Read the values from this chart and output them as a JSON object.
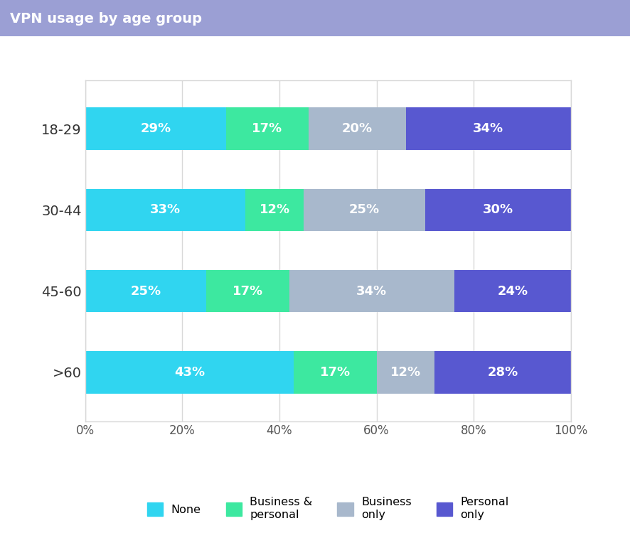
{
  "title": "VPN usage by age group",
  "title_bg_color": "#9b9fd4",
  "title_text_color": "#ffffff",
  "categories": [
    "18-29",
    "30-44",
    "45-60",
    ">60"
  ],
  "series": [
    {
      "name": "None",
      "color": "#30d5f0",
      "values": [
        29,
        33,
        25,
        43
      ]
    },
    {
      "name": "Business &\npersonal",
      "color": "#3de8a0",
      "values": [
        17,
        12,
        17,
        17
      ]
    },
    {
      "name": "Business\nonly",
      "color": "#a8b8cc",
      "values": [
        20,
        25,
        34,
        12
      ]
    },
    {
      "name": "Personal\nonly",
      "color": "#5858d0",
      "values": [
        34,
        30,
        24,
        28
      ]
    }
  ],
  "xlim": [
    0,
    100
  ],
  "xticks": [
    0,
    20,
    40,
    60,
    80,
    100
  ],
  "xticklabels": [
    "0%",
    "20%",
    "40%",
    "60%",
    "80%",
    "100%"
  ],
  "background_color": "#ffffff",
  "plot_bg_color": "#ffffff",
  "grid_color": "#d8d8d8",
  "bar_height": 0.52,
  "label_fontsize": 13,
  "tick_fontsize": 12,
  "title_fontsize": 14
}
